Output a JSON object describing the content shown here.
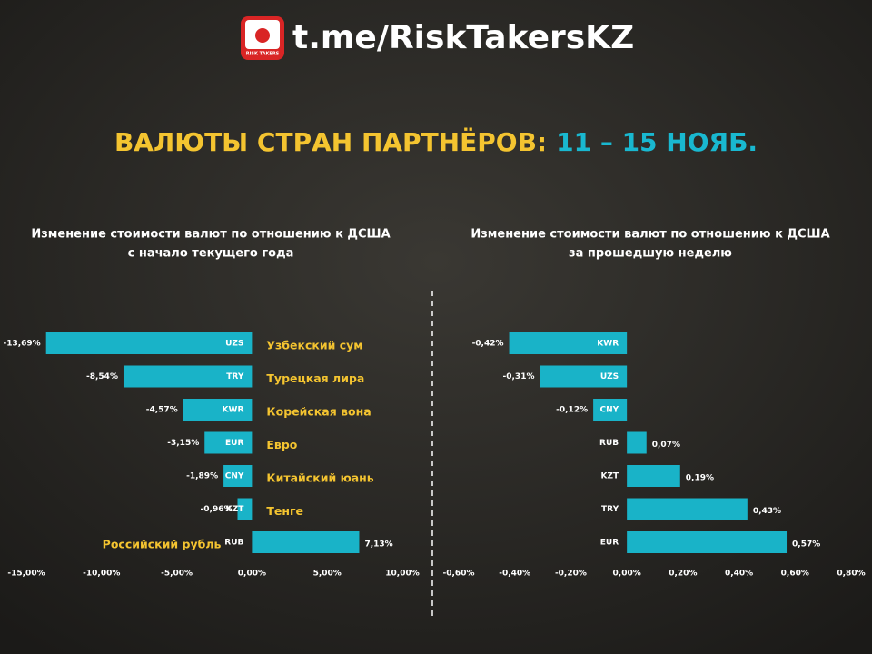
{
  "header": {
    "logo_text": "RISK TAKERS",
    "link": "t.me/RiskTakersKZ"
  },
  "title": {
    "main": "ВАЛЮТЫ СТРАН ПАРТНЁРОВ:",
    "dates": "11 – 15 НОЯБ."
  },
  "chart_data": [
    {
      "type": "bar",
      "orientation": "horizontal",
      "color": "#19b3c8",
      "title": [
        "Изменение стоимости валют по отношению к ДСША",
        "с начало текущего года"
      ],
      "categories": [
        "UZS",
        "TRY",
        "KWR",
        "EUR",
        "CNY",
        "KZT",
        "RUB"
      ],
      "currency_names": [
        "Узбекский сум",
        "Турецкая лира",
        "Корейская вона",
        "Евро",
        "Китайский юань",
        "Тенге",
        "Российский рубль"
      ],
      "values": [
        -13.69,
        -8.54,
        -4.57,
        -3.15,
        -1.89,
        -0.96,
        7.13
      ],
      "value_labels": [
        "-13,69%",
        "-8,54%",
        "-4,57%",
        "-3,15%",
        "-1,89%",
        "-0,96%",
        "7,13%"
      ],
      "xlim": [
        -15,
        10
      ],
      "xticks": [
        {
          "value": -15,
          "label": "-15,00%"
        },
        {
          "value": -10,
          "label": "-10,00%"
        },
        {
          "value": -5,
          "label": "-5,00%"
        },
        {
          "value": 0,
          "label": "0,00%"
        },
        {
          "value": 5,
          "label": "5,00%"
        },
        {
          "value": 10,
          "label": "10,00%"
        }
      ]
    },
    {
      "type": "bar",
      "orientation": "horizontal",
      "color": "#19b3c8",
      "title": [
        "Изменение стоимости валют по отношению к ДСША",
        "за прошедшую неделю"
      ],
      "categories": [
        "KWR",
        "UZS",
        "CNY",
        "RUB",
        "KZT",
        "TRY",
        "EUR"
      ],
      "values": [
        -0.42,
        -0.31,
        -0.12,
        0.07,
        0.19,
        0.43,
        0.57
      ],
      "value_labels": [
        "-0,42%",
        "-0,31%",
        "-0,12%",
        "0,07%",
        "0,19%",
        "0,43%",
        "0,57%"
      ],
      "xlim": [
        -0.6,
        0.8
      ],
      "xticks": [
        {
          "value": -0.6,
          "label": "-0,60%"
        },
        {
          "value": -0.4,
          "label": "-0,40%"
        },
        {
          "value": -0.2,
          "label": "-0,20%"
        },
        {
          "value": 0,
          "label": "0,00%"
        },
        {
          "value": 0.2,
          "label": "0,20%"
        },
        {
          "value": 0.4,
          "label": "0,40%"
        },
        {
          "value": 0.6,
          "label": "0,60%"
        },
        {
          "value": 0.8,
          "label": "0,80%"
        }
      ]
    }
  ]
}
